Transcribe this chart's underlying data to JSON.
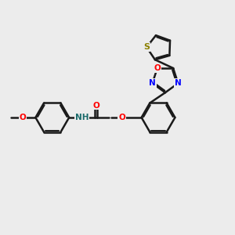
{
  "bg_color": "#ececec",
  "bond_color": "#1a1a1a",
  "bond_width": 1.8,
  "dbo": 0.055,
  "figsize": [
    3.0,
    3.0
  ],
  "dpi": 100,
  "xlim": [
    0,
    10
  ],
  "ylim": [
    0,
    10
  ]
}
